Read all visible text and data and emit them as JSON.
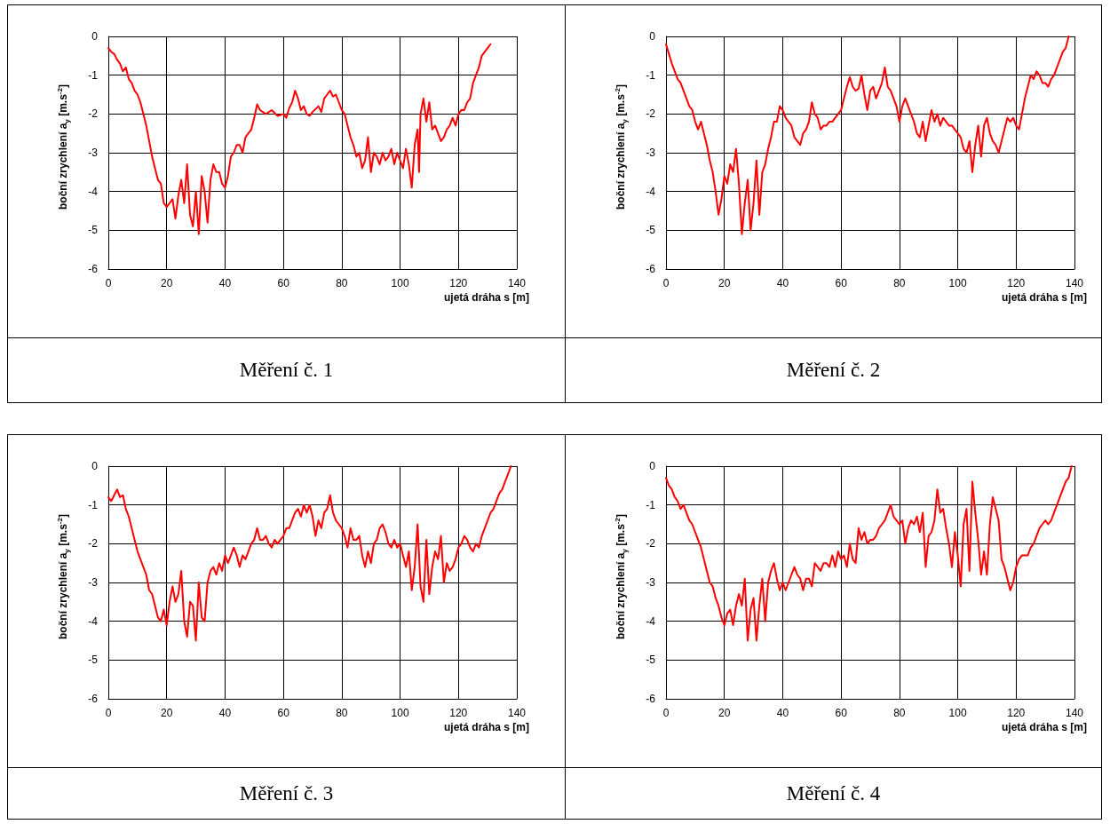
{
  "chart_data": [
    {
      "type": "line",
      "title": "Měření č. 1",
      "xlabel": "ujetá dráha s [m]",
      "ylabel": "boční zrychlení a$_{y}$  [m.s$^{-2}$]",
      "xlim": [
        0,
        140
      ],
      "xticks": [
        0,
        20,
        40,
        60,
        80,
        100,
        120,
        140
      ],
      "ylim": [
        -6,
        0
      ],
      "yticks": [
        -6,
        -5,
        -4,
        -3,
        -2,
        -1,
        0
      ],
      "grid": true,
      "marker": "none",
      "line_style": "solid",
      "series": [
        {
          "color": "#ff0000",
          "x": [
            0,
            1,
            2,
            3,
            4,
            5,
            6,
            7,
            8,
            9,
            10,
            11,
            12,
            13,
            14,
            15,
            16,
            17,
            18,
            19,
            20,
            21,
            22,
            23,
            24,
            25,
            26,
            27,
            28,
            29,
            30,
            31,
            32,
            33,
            34,
            35,
            36,
            37,
            38,
            39,
            40,
            41,
            42,
            43,
            44,
            45,
            46,
            47,
            48,
            49,
            50,
            51,
            52,
            54,
            56,
            58,
            60,
            61,
            62,
            63,
            64,
            65,
            66,
            67,
            68,
            69,
            70,
            72,
            73,
            74,
            75,
            76,
            77,
            78,
            79,
            80,
            81,
            82,
            83,
            84,
            85,
            86,
            87,
            88,
            89,
            90,
            91,
            92,
            93,
            94,
            95,
            96,
            97,
            98,
            99,
            100,
            101,
            102,
            103,
            104,
            105,
            106,
            106.5,
            107,
            108,
            109,
            110,
            111,
            112,
            113,
            114,
            115,
            116,
            117,
            118,
            119,
            120,
            121,
            122,
            123,
            124,
            125,
            126,
            127,
            128,
            129,
            130,
            131
          ],
          "values": [
            -0.3,
            -0.4,
            -0.45,
            -0.6,
            -0.7,
            -0.9,
            -0.8,
            -1.1,
            -1.2,
            -1.4,
            -1.5,
            -1.7,
            -2.0,
            -2.3,
            -2.7,
            -3.1,
            -3.4,
            -3.7,
            -3.8,
            -4.3,
            -4.4,
            -4.3,
            -4.2,
            -4.7,
            -4.1,
            -3.7,
            -4.3,
            -3.3,
            -4.6,
            -4.9,
            -4.0,
            -5.1,
            -3.6,
            -4.0,
            -4.8,
            -3.7,
            -3.3,
            -3.5,
            -3.5,
            -3.8,
            -3.9,
            -3.6,
            -3.1,
            -3.0,
            -2.8,
            -2.8,
            -3.0,
            -2.6,
            -2.5,
            -2.4,
            -2.1,
            -1.75,
            -1.9,
            -2.0,
            -1.9,
            -2.05,
            -2.0,
            -2.1,
            -1.85,
            -1.7,
            -1.4,
            -1.6,
            -1.9,
            -1.8,
            -2.0,
            -2.05,
            -1.95,
            -1.8,
            -1.95,
            -1.6,
            -1.5,
            -1.4,
            -1.55,
            -1.5,
            -1.7,
            -1.9,
            -2.0,
            -2.3,
            -2.6,
            -2.8,
            -3.1,
            -3.0,
            -3.4,
            -3.2,
            -2.6,
            -3.5,
            -3.0,
            -3.1,
            -3.3,
            -3.0,
            -3.2,
            -3.1,
            -2.9,
            -3.3,
            -3.0,
            -3.2,
            -3.4,
            -2.9,
            -3.3,
            -3.9,
            -2.8,
            -2.4,
            -3.5,
            -2.0,
            -1.6,
            -2.2,
            -1.7,
            -2.4,
            -2.3,
            -2.5,
            -2.7,
            -2.6,
            -2.4,
            -2.3,
            -2.1,
            -2.3,
            -2.0,
            -1.9,
            -1.9,
            -1.7,
            -1.6,
            -1.2,
            -1.0,
            -0.8,
            -0.5,
            -0.4,
            -0.3,
            -0.2
          ]
        }
      ]
    },
    {
      "type": "line",
      "title": "Měření č. 2",
      "xlabel": "ujetá dráha s [m]",
      "ylabel": "boční zrychlení a$_{y}$  [m.s$^{-2}$]",
      "xlim": [
        0,
        140
      ],
      "xticks": [
        0,
        20,
        40,
        60,
        80,
        100,
        120,
        140
      ],
      "ylim": [
        -6,
        0
      ],
      "yticks": [
        -6,
        -5,
        -4,
        -3,
        -2,
        -1,
        0
      ],
      "grid": true,
      "marker": "none",
      "line_style": "solid",
      "series": [
        {
          "color": "#ff0000",
          "x": [
            0,
            1,
            2,
            3,
            4,
            5,
            6,
            7,
            8,
            9,
            10,
            11,
            12,
            13,
            14,
            15,
            16,
            17,
            18,
            19,
            20,
            21,
            22,
            23,
            24,
            25,
            26,
            27,
            28,
            29,
            30,
            31,
            32,
            33,
            34,
            35,
            36,
            37,
            38,
            39,
            40,
            41,
            42,
            43,
            44,
            45,
            46,
            47,
            48,
            49,
            50,
            51,
            52,
            53,
            54,
            55,
            56,
            57,
            58,
            59,
            60,
            61,
            62,
            63,
            64,
            65,
            66,
            67,
            68,
            69,
            70,
            71,
            72,
            73,
            74,
            75,
            76,
            77,
            78,
            79,
            80,
            81,
            82,
            83,
            84,
            85,
            86,
            87,
            88,
            89,
            90,
            91,
            92,
            93,
            94,
            95,
            96,
            97,
            98,
            99,
            100,
            101,
            102,
            103,
            104,
            105,
            106,
            107,
            108,
            109,
            110,
            111,
            112,
            113,
            114,
            115,
            116,
            117,
            118,
            119,
            120,
            121,
            122,
            123,
            124,
            125,
            126,
            127,
            128,
            129,
            130,
            131,
            132,
            133,
            134,
            135,
            136,
            137,
            138
          ],
          "values": [
            -0.2,
            -0.45,
            -0.7,
            -0.9,
            -1.1,
            -1.2,
            -1.4,
            -1.6,
            -1.8,
            -1.9,
            -2.2,
            -2.4,
            -2.2,
            -2.5,
            -2.8,
            -3.2,
            -3.5,
            -4.0,
            -4.6,
            -4.2,
            -3.6,
            -3.8,
            -3.3,
            -3.5,
            -2.9,
            -3.8,
            -5.1,
            -4.3,
            -3.7,
            -5.0,
            -4.3,
            -3.2,
            -4.6,
            -3.5,
            -3.3,
            -2.9,
            -2.6,
            -2.2,
            -2.2,
            -1.8,
            -1.9,
            -2.1,
            -2.2,
            -2.3,
            -2.6,
            -2.7,
            -2.8,
            -2.5,
            -2.4,
            -2.2,
            -1.7,
            -2.0,
            -2.1,
            -2.4,
            -2.3,
            -2.3,
            -2.2,
            -2.2,
            -2.1,
            -2.0,
            -1.9,
            -1.6,
            -1.3,
            -1.05,
            -1.3,
            -1.4,
            -1.35,
            -1.0,
            -1.5,
            -1.9,
            -1.4,
            -1.3,
            -1.6,
            -1.4,
            -1.2,
            -0.8,
            -1.3,
            -1.4,
            -1.6,
            -1.8,
            -2.2,
            -1.8,
            -1.6,
            -1.8,
            -2.0,
            -2.2,
            -2.5,
            -2.6,
            -2.2,
            -2.7,
            -2.3,
            -1.9,
            -2.2,
            -2.0,
            -2.3,
            -2.1,
            -2.2,
            -2.3,
            -2.3,
            -2.4,
            -2.5,
            -2.6,
            -2.9,
            -3.0,
            -2.7,
            -3.5,
            -2.8,
            -2.3,
            -3.1,
            -2.3,
            -2.1,
            -2.5,
            -2.7,
            -2.8,
            -3.0,
            -2.7,
            -2.4,
            -2.1,
            -2.2,
            -2.1,
            -2.3,
            -2.4,
            -2.0,
            -1.6,
            -1.3,
            -1.0,
            -1.1,
            -0.9,
            -1.0,
            -1.2,
            -1.2,
            -1.3,
            -1.1,
            -1.0,
            -0.8,
            -0.6,
            -0.4,
            -0.3,
            0
          ]
        }
      ]
    },
    {
      "type": "line",
      "title": "Měření č. 3",
      "xlabel": "ujetá dráha s [m]",
      "ylabel": "boční zrychlení a$_{y}$  [m.s$^{-2}$]",
      "xlim": [
        0,
        140
      ],
      "xticks": [
        0,
        20,
        40,
        60,
        80,
        100,
        120,
        140
      ],
      "ylim": [
        -6,
        0
      ],
      "yticks": [
        -6,
        -5,
        -4,
        -3,
        -2,
        -1,
        0
      ],
      "grid": true,
      "marker": "none",
      "line_style": "solid",
      "series": [
        {
          "color": "#ff0000",
          "x": [
            0,
            1,
            2,
            3,
            4,
            5,
            6,
            7,
            8,
            9,
            10,
            11,
            12,
            13,
            14,
            15,
            16,
            17,
            18,
            19,
            20,
            21,
            22,
            23,
            24,
            25,
            26,
            27,
            28,
            29,
            30,
            31,
            32,
            33,
            34,
            35,
            36,
            37,
            38,
            39,
            40,
            41,
            42,
            43,
            44,
            45,
            46,
            47,
            48,
            49,
            50,
            51,
            52,
            53,
            54,
            55,
            56,
            57,
            58,
            59,
            60,
            61,
            62,
            63,
            64,
            65,
            66,
            67,
            68,
            69,
            70,
            71,
            72,
            73,
            74,
            75,
            76,
            77,
            78,
            79,
            80,
            81,
            82,
            83,
            84,
            85,
            86,
            87,
            88,
            89,
            90,
            91,
            92,
            93,
            94,
            95,
            96,
            97,
            98,
            99,
            100,
            101,
            102,
            103,
            104,
            105,
            106,
            107,
            108,
            109,
            110,
            111,
            112,
            113,
            114,
            115,
            116,
            117,
            118,
            119,
            120,
            121,
            122,
            123,
            124,
            125,
            126,
            127,
            128,
            129,
            130,
            131,
            132,
            133,
            134,
            135,
            136,
            137,
            138
          ],
          "values": [
            -0.8,
            -0.9,
            -0.75,
            -0.6,
            -0.8,
            -0.75,
            -1.1,
            -1.3,
            -1.6,
            -1.9,
            -2.2,
            -2.4,
            -2.6,
            -2.8,
            -3.2,
            -3.3,
            -3.6,
            -3.9,
            -4.0,
            -3.7,
            -4.1,
            -3.5,
            -3.1,
            -3.5,
            -3.3,
            -2.7,
            -4.0,
            -4.4,
            -3.5,
            -3.6,
            -4.5,
            -3.0,
            -3.9,
            -4.0,
            -3.0,
            -2.7,
            -2.6,
            -2.8,
            -2.5,
            -2.7,
            -2.3,
            -2.5,
            -2.3,
            -2.1,
            -2.3,
            -2.6,
            -2.3,
            -2.4,
            -2.2,
            -2.0,
            -1.9,
            -1.6,
            -1.9,
            -1.9,
            -1.8,
            -2.0,
            -2.1,
            -1.9,
            -2.0,
            -1.9,
            -1.8,
            -1.6,
            -1.6,
            -1.4,
            -1.2,
            -1.1,
            -1.3,
            -1.0,
            -1.2,
            -1.0,
            -1.3,
            -1.8,
            -1.4,
            -1.6,
            -1.2,
            -1.1,
            -0.75,
            -1.2,
            -1.4,
            -1.5,
            -1.6,
            -1.8,
            -2.1,
            -1.6,
            -1.9,
            -1.9,
            -1.8,
            -2.3,
            -2.6,
            -2.2,
            -2.5,
            -2.0,
            -1.9,
            -1.6,
            -1.5,
            -1.7,
            -2.0,
            -2.1,
            -1.9,
            -2.1,
            -2.0,
            -2.3,
            -2.6,
            -2.2,
            -3.2,
            -2.6,
            -1.5,
            -3.1,
            -3.5,
            -1.9,
            -3.3,
            -2.6,
            -2.2,
            -2.4,
            -1.8,
            -3.0,
            -2.5,
            -2.7,
            -2.6,
            -2.4,
            -2.1,
            -2.0,
            -1.8,
            -1.9,
            -2.1,
            -2.2,
            -2.0,
            -2.1,
            -1.8,
            -1.6,
            -1.4,
            -1.2,
            -1.1,
            -0.9,
            -0.7,
            -0.6,
            -0.4,
            -0.2,
            0
          ]
        }
      ]
    },
    {
      "type": "line",
      "title": "Měření č. 4",
      "xlabel": "ujetá dráha s [m]",
      "ylabel": "boční zrychlení a$_{y}$  [m.s$^{-2}$]",
      "xlim": [
        0,
        140
      ],
      "xticks": [
        0,
        20,
        40,
        60,
        80,
        100,
        120,
        140
      ],
      "ylim": [
        -6,
        0
      ],
      "yticks": [
        -6,
        -5,
        -4,
        -3,
        -2,
        -1,
        0
      ],
      "grid": true,
      "marker": "none",
      "line_style": "solid",
      "series": [
        {
          "color": "#ff0000",
          "x": [
            0,
            1,
            2,
            3,
            4,
            5,
            6,
            7,
            8,
            9,
            10,
            11,
            12,
            13,
            14,
            15,
            16,
            17,
            18,
            19,
            20,
            21,
            22,
            23,
            24,
            25,
            26,
            27,
            28,
            29,
            30,
            31,
            32,
            33,
            34,
            35,
            36,
            37,
            38,
            39,
            40,
            41,
            42,
            43,
            44,
            45,
            46,
            47,
            48,
            49,
            50,
            51,
            52,
            53,
            54,
            55,
            56,
            57,
            58,
            59,
            60,
            61,
            62,
            63,
            64,
            65,
            66,
            67,
            68,
            69,
            70,
            71,
            72,
            73,
            74,
            75,
            76,
            77,
            78,
            79,
            80,
            81,
            82,
            83,
            84,
            85,
            86,
            87,
            88,
            89,
            90,
            91,
            92,
            93,
            94,
            95,
            96,
            97,
            98,
            99,
            100,
            101,
            102,
            103,
            104,
            105,
            106,
            107,
            108,
            109,
            110,
            111,
            112,
            113,
            114,
            115,
            116,
            117,
            118,
            119,
            120,
            121,
            122,
            123,
            124,
            125,
            126,
            127,
            128,
            129,
            130,
            131,
            132,
            133,
            134,
            135,
            136,
            137,
            138,
            139
          ],
          "values": [
            -0.3,
            -0.5,
            -0.6,
            -0.8,
            -0.9,
            -1.1,
            -1.0,
            -1.2,
            -1.4,
            -1.5,
            -1.7,
            -1.9,
            -2.1,
            -2.4,
            -2.7,
            -3.0,
            -3.1,
            -3.4,
            -3.6,
            -3.9,
            -4.1,
            -3.8,
            -3.7,
            -4.1,
            -3.6,
            -3.3,
            -3.6,
            -2.9,
            -4.5,
            -3.7,
            -3.4,
            -4.5,
            -3.6,
            -2.9,
            -4.0,
            -3.0,
            -2.7,
            -2.5,
            -2.9,
            -3.2,
            -3.0,
            -3.2,
            -3.0,
            -2.8,
            -2.6,
            -2.8,
            -2.9,
            -3.2,
            -2.9,
            -2.9,
            -3.1,
            -2.5,
            -2.6,
            -2.7,
            -2.5,
            -2.5,
            -2.6,
            -2.3,
            -2.6,
            -2.2,
            -2.4,
            -2.3,
            -2.6,
            -2.0,
            -2.4,
            -2.5,
            -1.6,
            -1.9,
            -1.7,
            -2.0,
            -1.9,
            -1.9,
            -1.8,
            -1.6,
            -1.5,
            -1.4,
            -1.2,
            -1.0,
            -1.3,
            -1.4,
            -1.5,
            -1.4,
            -2.0,
            -1.6,
            -1.4,
            -1.5,
            -1.3,
            -1.7,
            -1.2,
            -2.6,
            -1.8,
            -1.7,
            -1.4,
            -0.6,
            -1.2,
            -1.1,
            -1.6,
            -2.0,
            -2.6,
            -1.7,
            -2.3,
            -3.1,
            -1.5,
            -1.1,
            -2.7,
            -0.4,
            -1.2,
            -1.9,
            -2.8,
            -2.2,
            -2.8,
            -1.5,
            -0.8,
            -1.1,
            -1.4,
            -2.4,
            -2.6,
            -2.9,
            -3.2,
            -3.0,
            -2.6,
            -2.4,
            -2.3,
            -2.3,
            -2.3,
            -2.1,
            -2.0,
            -1.8,
            -1.6,
            -1.5,
            -1.4,
            -1.5,
            -1.4,
            -1.2,
            -1.0,
            -0.8,
            -0.6,
            -0.4,
            -0.3,
            0
          ]
        }
      ]
    }
  ]
}
